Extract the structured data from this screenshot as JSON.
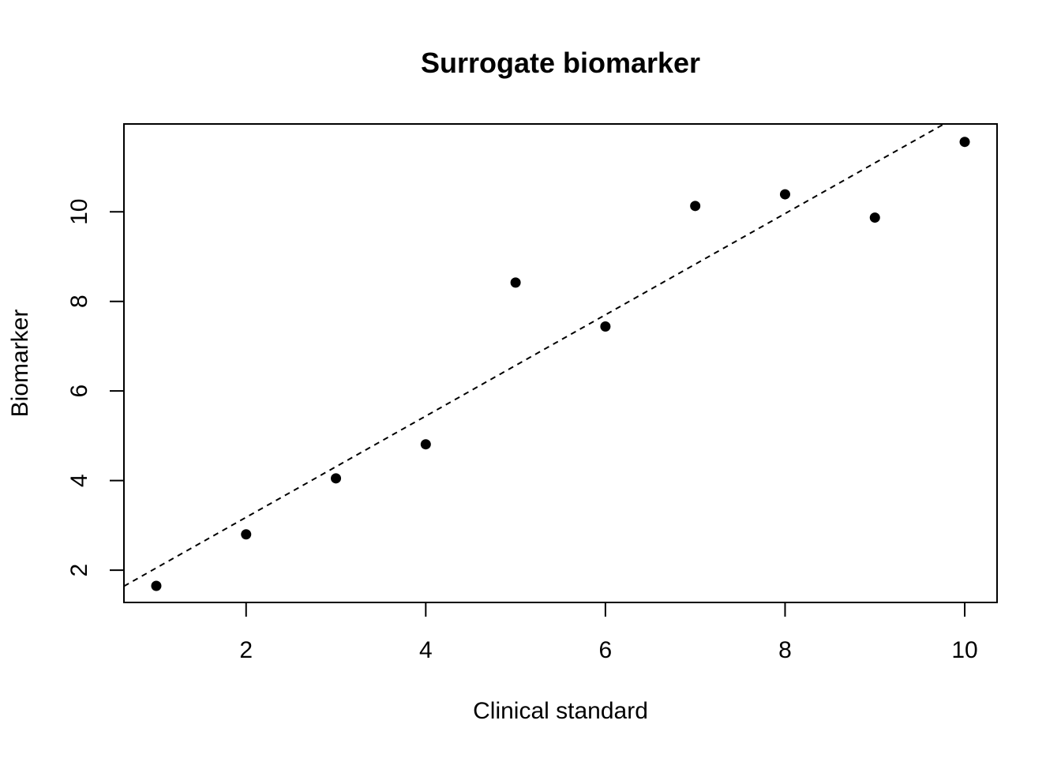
{
  "chart_data": {
    "type": "scatter",
    "title": "Surrogate biomarker",
    "xlabel": "Clinical standard",
    "ylabel": "Biomarker",
    "xlim": [
      0.64,
      10.36
    ],
    "ylim": [
      1.28,
      11.96
    ],
    "x_ticks": [
      2,
      4,
      6,
      8,
      10
    ],
    "y_ticks": [
      2,
      4,
      6,
      8,
      10
    ],
    "grid": false,
    "legend": "none",
    "point_color": "#000000",
    "points": [
      {
        "x": 1,
        "y": 1.65
      },
      {
        "x": 2,
        "y": 2.8
      },
      {
        "x": 3,
        "y": 4.05
      },
      {
        "x": 4,
        "y": 4.81
      },
      {
        "x": 5,
        "y": 8.42
      },
      {
        "x": 6,
        "y": 7.44
      },
      {
        "x": 7,
        "y": 10.13
      },
      {
        "x": 8,
        "y": 10.39
      },
      {
        "x": 9,
        "y": 9.87
      },
      {
        "x": 10,
        "y": 11.56
      }
    ],
    "reference_line": {
      "style": "dashed",
      "color": "#000000",
      "intercept": 0.92,
      "slope": 1.13
    }
  }
}
